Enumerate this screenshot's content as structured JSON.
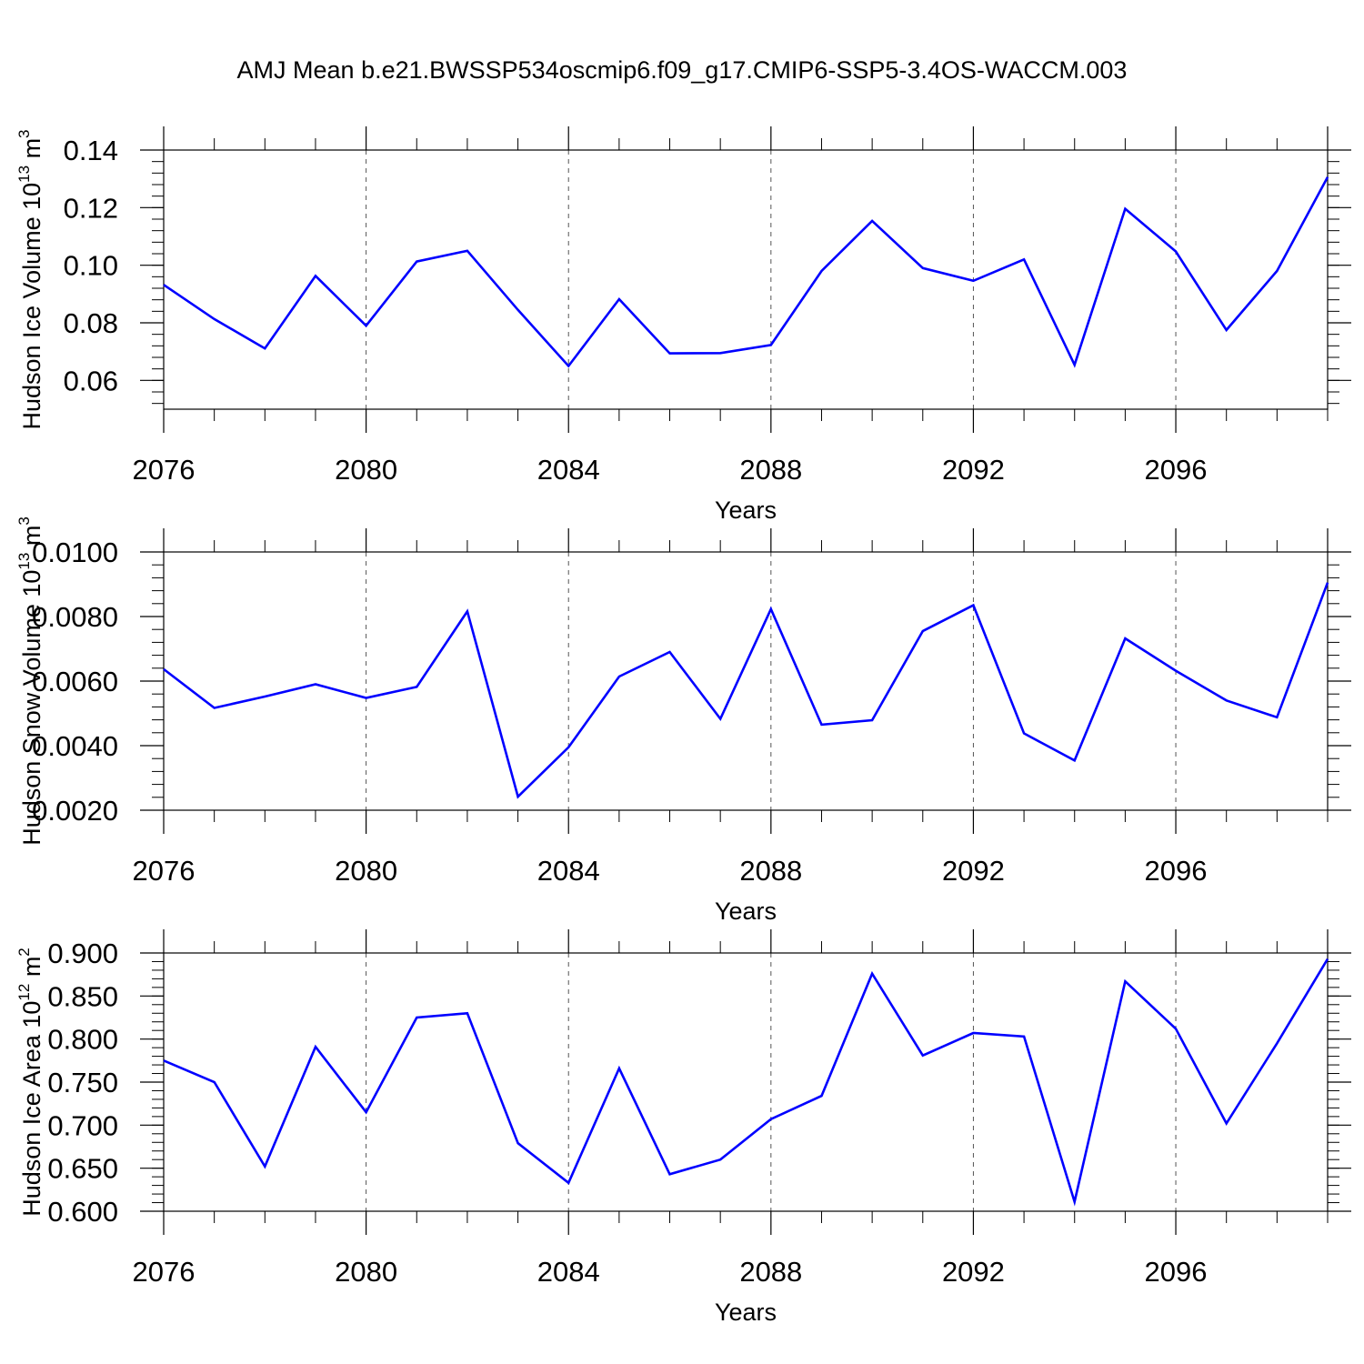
{
  "figure": {
    "title": "AMJ Mean b.e21.BWSSP534oscmip6.f09_g17.CMIP6-SSP5-3.4OS-WACCM.003",
    "line_color": "#0000ff",
    "grid_color": "#555555"
  },
  "chart_data": [
    {
      "type": "line",
      "xlabel": "Years",
      "ylabel": "Hudson Ice Volume 10",
      "ylabel_sup": "13",
      "ylabel_unit": " m",
      "ylabel_unit_sup": "3",
      "xlim": [
        2076,
        2099
      ],
      "ylim": [
        0.05,
        0.14
      ],
      "xticks": [
        2076,
        2080,
        2084,
        2088,
        2092,
        2096
      ],
      "xtick_labels": [
        "2076",
        "2080",
        "2084",
        "2088",
        "2092",
        "2096"
      ],
      "yticks": [
        0.06,
        0.08,
        0.1,
        0.12,
        0.14
      ],
      "ytick_labels": [
        "0.06",
        "0.08",
        "0.10",
        "0.12",
        "0.14"
      ],
      "grid": "vertical dashed at major x ticks",
      "x": [
        2076,
        2077,
        2078,
        2079,
        2080,
        2081,
        2082,
        2083,
        2084,
        2085,
        2086,
        2087,
        2088,
        2089,
        2090,
        2091,
        2092,
        2093,
        2094,
        2095,
        2096,
        2097,
        2098,
        2099
      ],
      "y": [
        0.0932,
        0.0813,
        0.0711,
        0.0963,
        0.079,
        0.1013,
        0.105,
        0.0845,
        0.065,
        0.0882,
        0.0694,
        0.0695,
        0.0723,
        0.098,
        0.1154,
        0.099,
        0.0946,
        0.102,
        0.0654,
        0.1196,
        0.1048,
        0.0775,
        0.098,
        0.1306
      ]
    },
    {
      "type": "line",
      "xlabel": "Years",
      "ylabel": "Hudson Snow Volume 10",
      "ylabel_sup": "13",
      "ylabel_unit": " m",
      "ylabel_unit_sup": "3",
      "xlim": [
        2076,
        2099
      ],
      "ylim": [
        0.002,
        0.01
      ],
      "xticks": [
        2076,
        2080,
        2084,
        2088,
        2092,
        2096
      ],
      "xtick_labels": [
        "2076",
        "2080",
        "2084",
        "2088",
        "2092",
        "2096"
      ],
      "yticks": [
        0.002,
        0.004,
        0.006,
        0.008,
        0.01
      ],
      "ytick_labels": [
        "0.0020",
        "0.0040",
        "0.0060",
        "0.0080",
        "0.0100"
      ],
      "grid": "vertical dashed at major x ticks",
      "x": [
        2076,
        2077,
        2078,
        2079,
        2080,
        2081,
        2082,
        2083,
        2084,
        2085,
        2086,
        2087,
        2088,
        2089,
        2090,
        2091,
        2092,
        2093,
        2094,
        2095,
        2096,
        2097,
        2098,
        2099
      ],
      "y": [
        0.00637,
        0.00517,
        0.00552,
        0.0059,
        0.00548,
        0.00582,
        0.00816,
        0.00242,
        0.00395,
        0.00614,
        0.0069,
        0.00483,
        0.00823,
        0.00465,
        0.00479,
        0.00755,
        0.00835,
        0.00438,
        0.00354,
        0.00732,
        0.00632,
        0.0054,
        0.00488,
        0.00905
      ]
    },
    {
      "type": "line",
      "xlabel": "Years",
      "ylabel": "Hudson Ice Area 10",
      "ylabel_sup": "12",
      "ylabel_unit": " m",
      "ylabel_unit_sup": "2",
      "xlim": [
        2076,
        2099
      ],
      "ylim": [
        0.6,
        0.9
      ],
      "xticks": [
        2076,
        2080,
        2084,
        2088,
        2092,
        2096
      ],
      "xtick_labels": [
        "2076",
        "2080",
        "2084",
        "2088",
        "2092",
        "2096"
      ],
      "yticks": [
        0.6,
        0.65,
        0.7,
        0.75,
        0.8,
        0.85,
        0.9
      ],
      "ytick_labels": [
        "0.600",
        "0.650",
        "0.700",
        "0.750",
        "0.800",
        "0.850",
        "0.900"
      ],
      "grid": "vertical dashed at major x ticks",
      "x": [
        2076,
        2077,
        2078,
        2079,
        2080,
        2081,
        2082,
        2083,
        2084,
        2085,
        2086,
        2087,
        2088,
        2089,
        2090,
        2091,
        2092,
        2093,
        2094,
        2095,
        2096,
        2097,
        2098,
        2099
      ],
      "y": [
        0.775,
        0.75,
        0.652,
        0.791,
        0.715,
        0.825,
        0.83,
        0.679,
        0.633,
        0.766,
        0.643,
        0.66,
        0.707,
        0.734,
        0.876,
        0.781,
        0.807,
        0.803,
        0.611,
        0.867,
        0.812,
        0.702,
        0.795,
        0.893
      ]
    }
  ]
}
